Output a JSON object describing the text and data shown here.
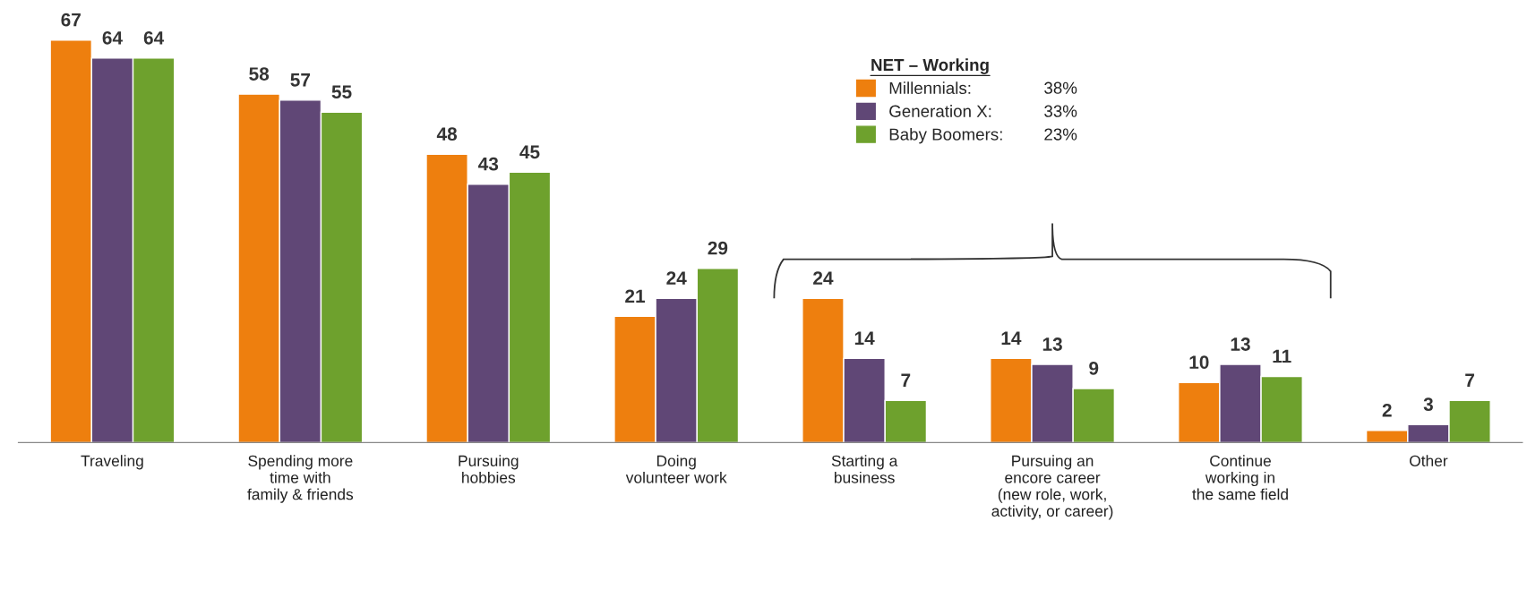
{
  "chart_data": {
    "type": "bar",
    "categories": [
      "Traveling",
      "Spending more\ntime with\nfamily & friends",
      "Pursuing\nhobbies",
      "Doing\nvolunteer work",
      "Starting a\nbusiness",
      "Pursuing an\nencore career\n(new role, work,\nactivity, or career)",
      "Continue\nworking in\nthe same field",
      "Other"
    ],
    "series": [
      {
        "name": "Millennials:",
        "color": "#ee7f0e",
        "values": [
          67,
          58,
          48,
          21,
          24,
          14,
          10,
          2
        ]
      },
      {
        "name": "Generation X:",
        "color": "#604776",
        "values": [
          64,
          57,
          43,
          24,
          14,
          13,
          13,
          3
        ]
      },
      {
        "name": "Baby Boomers:",
        "color": "#6ea12d",
        "values": [
          64,
          55,
          45,
          29,
          7,
          9,
          11,
          7
        ]
      }
    ],
    "legend_title": "NET – Working",
    "annotations": [
      "38%",
      "33%",
      "23%"
    ],
    "data_labels": true,
    "legend": "top right",
    "grid": false
  }
}
